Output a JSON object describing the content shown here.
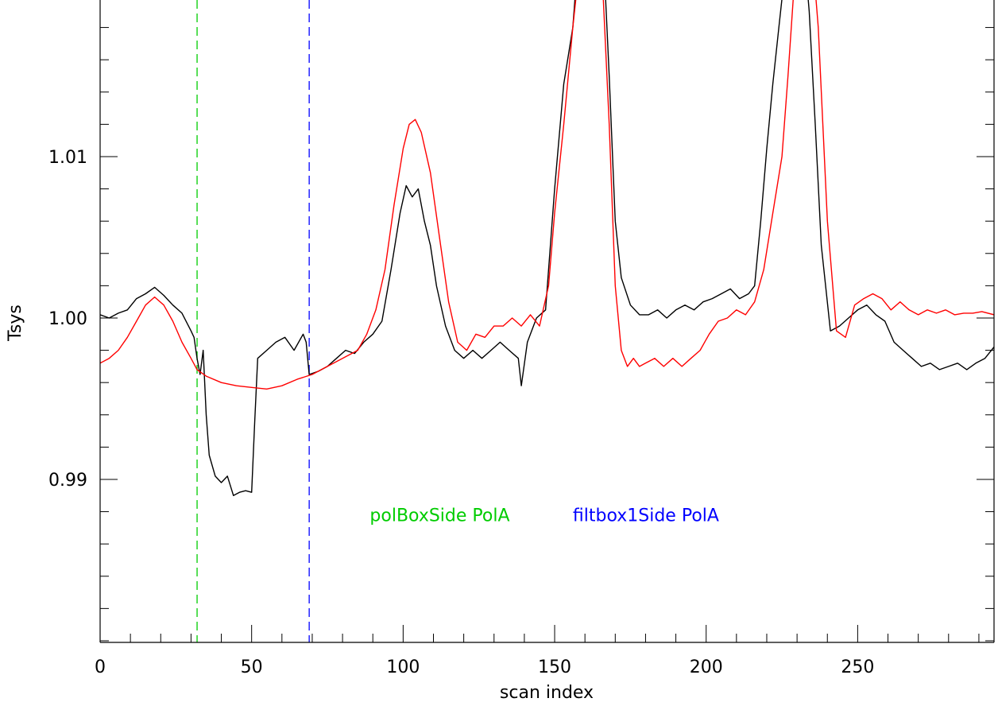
{
  "chart_data": {
    "type": "line",
    "title": "",
    "xlabel": "scan index",
    "ylabel": "Tsys",
    "xlim": [
      0,
      295
    ],
    "ylim": [
      0.9799,
      1.0199
    ],
    "x_ticks": [
      0,
      50,
      100,
      150,
      200,
      250
    ],
    "y_ticks": [
      0.99,
      1.0,
      1.01
    ],
    "y_tick_labels": [
      "0.99",
      "1.00",
      "1.01"
    ],
    "x_minor_step": 10,
    "y_minor_step": 0.002,
    "grid": false,
    "legend": "none",
    "series": [
      {
        "color": "#000000",
        "x": [
          0,
          3,
          6,
          9,
          12,
          15,
          18,
          21,
          24,
          27,
          30,
          31,
          32,
          33,
          34,
          35,
          36,
          38,
          40,
          42,
          44,
          46,
          48,
          50,
          51,
          52,
          55,
          58,
          61,
          64,
          67,
          68,
          69,
          72,
          75,
          78,
          81,
          84,
          87,
          90,
          93,
          96,
          99,
          101,
          103,
          105,
          107,
          109,
          111,
          114,
          117,
          120,
          123,
          126,
          129,
          132,
          135,
          138,
          139,
          141,
          144,
          147,
          150,
          153,
          156,
          158,
          160,
          163,
          166,
          168,
          170,
          172,
          175,
          178,
          181,
          184,
          187,
          190,
          193,
          196,
          199,
          202,
          205,
          208,
          211,
          214,
          216,
          218,
          220,
          222,
          224,
          226,
          228,
          230,
          232,
          234,
          236,
          238,
          241,
          244,
          247,
          250,
          253,
          256,
          259,
          262,
          265,
          268,
          271,
          274,
          277,
          280,
          283,
          286,
          289,
          292,
          295
        ],
        "y": [
          1.0002,
          1.0,
          1.0003,
          1.0005,
          1.0012,
          1.0015,
          1.0019,
          1.0014,
          1.0008,
          1.0003,
          0.9992,
          0.9988,
          0.9975,
          0.9965,
          0.998,
          0.994,
          0.9915,
          0.9902,
          0.9898,
          0.9902,
          0.989,
          0.9892,
          0.9893,
          0.9892,
          0.9935,
          0.9975,
          0.998,
          0.9985,
          0.9988,
          0.998,
          0.999,
          0.9985,
          0.9965,
          0.9967,
          0.997,
          0.9975,
          0.998,
          0.9978,
          0.9985,
          0.999,
          0.9998,
          1.003,
          1.0065,
          1.0082,
          1.0075,
          1.008,
          1.006,
          1.0045,
          1.002,
          0.9995,
          0.998,
          0.9975,
          0.998,
          0.9975,
          0.998,
          0.9985,
          0.998,
          0.9975,
          0.9958,
          0.9985,
          1.0,
          1.0005,
          1.008,
          1.0145,
          1.018,
          1.023,
          1.025,
          1.0255,
          1.023,
          1.015,
          1.006,
          1.0025,
          1.0008,
          1.0002,
          1.0002,
          1.0005,
          1.0,
          1.0005,
          1.0008,
          1.0005,
          1.001,
          1.0012,
          1.0015,
          1.0018,
          1.0012,
          1.0015,
          1.002,
          1.006,
          1.0105,
          1.0145,
          1.018,
          1.0215,
          1.023,
          1.0245,
          1.0235,
          1.019,
          1.012,
          1.0045,
          0.9992,
          0.9995,
          1.0,
          1.0005,
          1.0008,
          1.0002,
          0.9998,
          0.9985,
          0.998,
          0.9975,
          0.997,
          0.9972,
          0.9968,
          0.997,
          0.9972,
          0.9968,
          0.9972,
          0.9975,
          0.9982
        ]
      },
      {
        "color": "#ff0000",
        "x": [
          0,
          3,
          6,
          9,
          12,
          15,
          18,
          21,
          24,
          27,
          30,
          32,
          35,
          40,
          45,
          50,
          55,
          60,
          65,
          70,
          75,
          80,
          85,
          88,
          91,
          94,
          97,
          100,
          102,
          104,
          106,
          109,
          112,
          115,
          118,
          121,
          124,
          127,
          130,
          133,
          136,
          139,
          142,
          145,
          148,
          150,
          153,
          156,
          158,
          160,
          162,
          165,
          168,
          170,
          172,
          174,
          176,
          178,
          180,
          183,
          186,
          189,
          192,
          195,
          198,
          201,
          204,
          207,
          210,
          213,
          216,
          219,
          222,
          225,
          227,
          229,
          231,
          234,
          237,
          240,
          243,
          246,
          249,
          252,
          255,
          258,
          261,
          264,
          267,
          270,
          273,
          276,
          279,
          282,
          285,
          288,
          291,
          295
        ],
        "y": [
          0.9972,
          0.9975,
          0.998,
          0.9988,
          0.9998,
          1.0008,
          1.0013,
          1.0008,
          0.9998,
          0.9985,
          0.9975,
          0.9968,
          0.9964,
          0.996,
          0.9958,
          0.9957,
          0.9956,
          0.9958,
          0.9962,
          0.9965,
          0.997,
          0.9975,
          0.998,
          0.999,
          1.0005,
          1.003,
          1.007,
          1.0105,
          1.012,
          1.0123,
          1.0115,
          1.009,
          1.005,
          1.001,
          0.9985,
          0.998,
          0.999,
          0.9988,
          0.9995,
          0.9995,
          1.0,
          0.9995,
          1.0002,
          0.9995,
          1.002,
          1.0065,
          1.012,
          1.018,
          1.0215,
          1.025,
          1.027,
          1.024,
          1.012,
          1.002,
          0.998,
          0.997,
          0.9975,
          0.997,
          0.9972,
          0.9975,
          0.997,
          0.9975,
          0.997,
          0.9975,
          0.998,
          0.999,
          0.9998,
          1.0,
          1.0005,
          1.0002,
          1.001,
          1.003,
          1.0065,
          1.01,
          1.015,
          1.0205,
          1.0235,
          1.025,
          1.018,
          1.006,
          0.9992,
          0.9988,
          1.0008,
          1.0012,
          1.0015,
          1.0012,
          1.0005,
          1.001,
          1.0005,
          1.0002,
          1.0005,
          1.0003,
          1.0005,
          1.0002,
          1.0003,
          1.0003,
          1.0004,
          1.0002
        ]
      }
    ],
    "vlines": [
      {
        "x": 32,
        "color": "#00cc00",
        "style": "dashed",
        "label": "polBoxSide PolA",
        "label_x": 89,
        "label_y": 0.9878
      },
      {
        "x": 69,
        "color": "#0000ff",
        "style": "dashed",
        "label": "filtbox1Side PolA",
        "label_x": 156,
        "label_y": 0.9878
      }
    ]
  }
}
